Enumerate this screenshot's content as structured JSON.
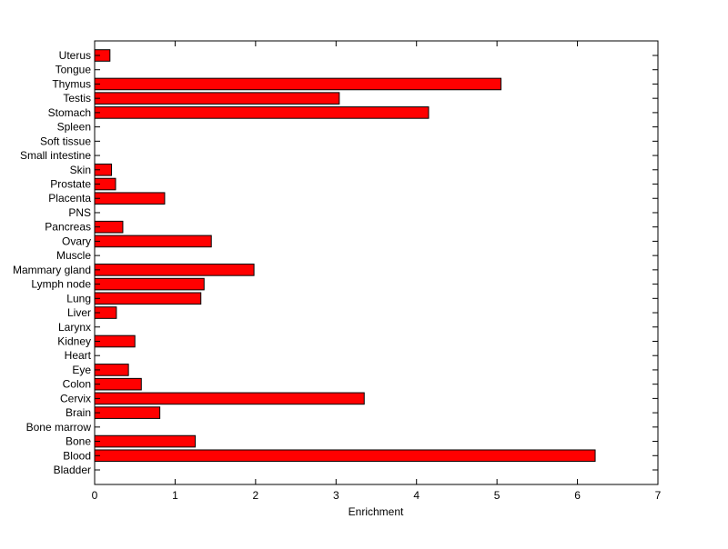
{
  "chart_data": {
    "type": "bar",
    "orientation": "horizontal",
    "title": "",
    "xlabel": "Enrichment",
    "ylabel": "",
    "xlim": [
      0,
      7
    ],
    "xticks": [
      0,
      1,
      2,
      3,
      4,
      5,
      6,
      7
    ],
    "grid": false,
    "legend": "none",
    "bar_color": "#ff0000",
    "bar_edge_color": "#000000",
    "categories": [
      "Bladder",
      "Blood",
      "Bone",
      "Bone marrow",
      "Brain",
      "Cervix",
      "Colon",
      "Eye",
      "Heart",
      "Kidney",
      "Larynx",
      "Liver",
      "Lung",
      "Lymph node",
      "Mammary gland",
      "Muscle",
      "Ovary",
      "Pancreas",
      "PNS",
      "Placenta",
      "Prostate",
      "Skin",
      "Small intestine",
      "Soft tissue",
      "Spleen",
      "Stomach",
      "Testis",
      "Thymus",
      "Tongue",
      "Uterus"
    ],
    "values": [
      0,
      6.22,
      1.25,
      0,
      0.81,
      3.35,
      0.58,
      0.42,
      0,
      0.5,
      0,
      0.27,
      1.32,
      1.36,
      1.98,
      0,
      1.45,
      0.35,
      0,
      0.87,
      0.26,
      0.21,
      0,
      0,
      0,
      4.15,
      3.04,
      5.05,
      0,
      0.19
    ]
  }
}
